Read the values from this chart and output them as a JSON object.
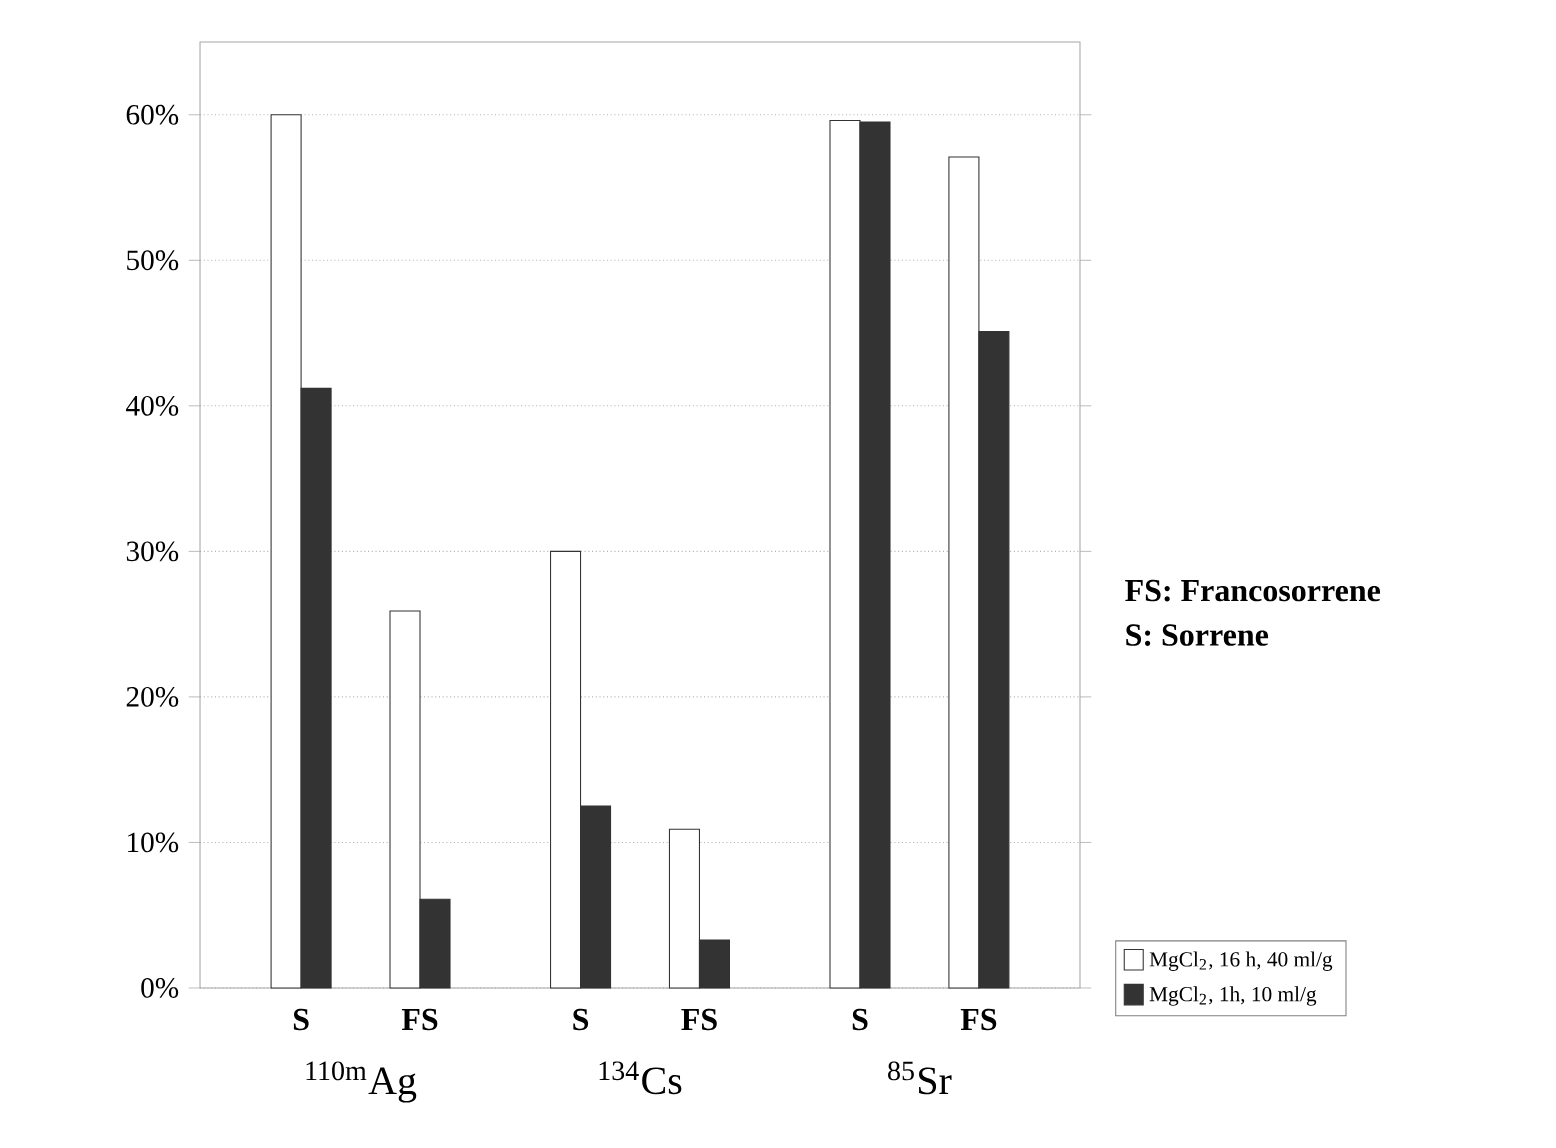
{
  "chart_data": {
    "type": "bar",
    "categories": [
      "S",
      "FS",
      "S",
      "FS",
      "S",
      "FS"
    ],
    "series": [
      {
        "name": "MgCl$_{2}$, 16 h, 40 ml/g",
        "color": "#ffffff",
        "values": [
          60,
          25.9,
          30,
          10.9,
          59.6,
          57.1
        ]
      },
      {
        "name": "MgCl$_{2}$, 1h, 10 ml/g",
        "color": "#333333",
        "values": [
          41.2,
          6.1,
          12.5,
          3.3,
          59.5,
          45.1
        ]
      }
    ],
    "ylim": [
      0,
      65
    ],
    "yticks": [
      {
        "value": 0,
        "label": "0%"
      },
      {
        "value": 10,
        "label": "10%"
      },
      {
        "value": 20,
        "label": "20%"
      },
      {
        "value": 30,
        "label": "30%"
      },
      {
        "value": 40,
        "label": "40%"
      },
      {
        "value": 50,
        "label": "50%"
      },
      {
        "value": 60,
        "label": "60%"
      }
    ],
    "grid": "y",
    "legend": "bottom right",
    "annotations": [
      "$^{110m}$Ag",
      "$^{134}$Cs",
      "$^{85}$Sr",
      "**FS: Francosorrene**",
      "**S: Sorrene**"
    ]
  }
}
